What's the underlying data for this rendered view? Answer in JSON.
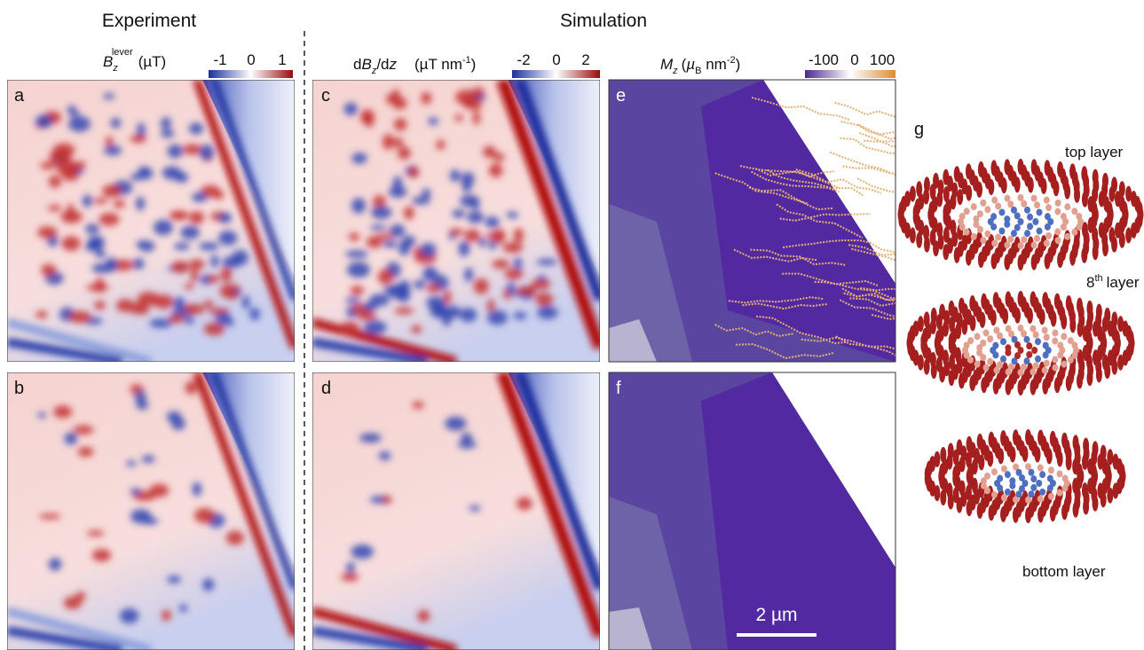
{
  "headers": {
    "experiment": "Experiment",
    "simulation": "Simulation"
  },
  "colorbars": [
    {
      "parts": [
        "B",
        "z",
        "lever",
        "(µT)"
      ],
      "ticks": [
        "-1",
        "0",
        "1"
      ]
    },
    {
      "parts": [
        "d",
        "B",
        "z",
        "/d",
        "z",
        "(µT nm",
        "-1",
        ")"
      ],
      "ticks": [
        "-2",
        "0",
        "2"
      ]
    },
    {
      "parts": [
        "M",
        "z",
        "(",
        "µ",
        "B",
        " nm",
        "-2",
        ")"
      ],
      "ticks": [
        "-100",
        "0",
        "100"
      ]
    }
  ],
  "panels": [
    "a",
    "b",
    "c",
    "d",
    "e",
    "f",
    "g"
  ],
  "scale_bar": "2 µm",
  "layers": {
    "top": "top layer",
    "eighth": [
      "8",
      "th",
      "layer"
    ],
    "bottom": "bottom layer"
  }
}
